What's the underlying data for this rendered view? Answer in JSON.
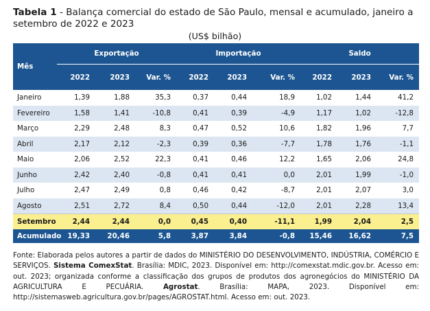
{
  "title": {
    "label": "Tabela 1",
    "text": " - Balança comercial do estado de São Paulo, mensal e acumulado, janeiro a setembro de 2022 e 2023"
  },
  "unit": "(US$ bilhão)",
  "table": {
    "col_month": "Mês",
    "groups": [
      "Exportação",
      "Importação",
      "Saldo"
    ],
    "subcols": [
      "2022",
      "2023",
      "Var. %"
    ],
    "rows": [
      {
        "mes": "Janeiro",
        "v": [
          "1,39",
          "1,88",
          "35,3",
          "0,37",
          "0,44",
          "18,9",
          "1,02",
          "1,44",
          "41,2"
        ]
      },
      {
        "mes": "Fevereiro",
        "v": [
          "1,58",
          "1,41",
          "-10,8",
          "0,41",
          "0,39",
          "-4,9",
          "1,17",
          "1,02",
          "-12,8"
        ]
      },
      {
        "mes": "Março",
        "v": [
          "2,29",
          "2,48",
          "8,3",
          "0,47",
          "0,52",
          "10,6",
          "1,82",
          "1,96",
          "7,7"
        ]
      },
      {
        "mes": "Abril",
        "v": [
          "2,17",
          "2,12",
          "-2,3",
          "0,39",
          "0,36",
          "-7,7",
          "1,78",
          "1,76",
          "-1,1"
        ]
      },
      {
        "mes": "Maio",
        "v": [
          "2,06",
          "2,52",
          "22,3",
          "0,41",
          "0,46",
          "12,2",
          "1,65",
          "2,06",
          "24,8"
        ]
      },
      {
        "mes": "Junho",
        "v": [
          "2,42",
          "2,40",
          "-0,8",
          "0,41",
          "0,41",
          "0,0",
          "2,01",
          "1,99",
          "-1,0"
        ]
      },
      {
        "mes": "Julho",
        "v": [
          "2,47",
          "2,49",
          "0,8",
          "0,46",
          "0,42",
          "-8,7",
          "2,01",
          "2,07",
          "3,0"
        ]
      },
      {
        "mes": "Agosto",
        "v": [
          "2,51",
          "2,72",
          "8,4",
          "0,50",
          "0,44",
          "-12,0",
          "2,01",
          "2,28",
          "13,4"
        ]
      },
      {
        "mes": "Setembro",
        "v": [
          "2,44",
          "2,44",
          "0,0",
          "0,45",
          "0,40",
          "-11,1",
          "1,99",
          "2,04",
          "2,5"
        ]
      },
      {
        "mes": "Acumulado",
        "v": [
          "19,33",
          "20,46",
          "5,8",
          "3,87",
          "3,84",
          "-0,8",
          "15,46",
          "16,62",
          "7,5"
        ]
      }
    ]
  },
  "source": {
    "p1": "Fonte: Elaborada pelos autores a partir de dados do MINISTÉRIO DO DESENVOLVIMENTO, INDÚSTRIA, COMÉRCIO E SERVIÇOS.",
    "b1": "Sistema ComexStat",
    "p2": ". Brasília: MDIC, 2023. Disponível em: http://comexstat.mdic.gov.br. Acesso em: out. 2023; organizada conforme a classificação dos grupos de produtos dos agronegócios do MINISTÉRIO DA AGRICULTURA E PECUÁRIA. ",
    "b2": "Agrostat",
    "p3": ". Brasília: MAPA, 2023. Disponível em: http://sistemasweb.agricultura.gov.br/pages/AGROSTAT.html. Acesso em: out. 2023."
  },
  "colors": {
    "header_bg": "#1c5591",
    "stripe": "#dce6f2",
    "highlight": "#fbf08f"
  }
}
